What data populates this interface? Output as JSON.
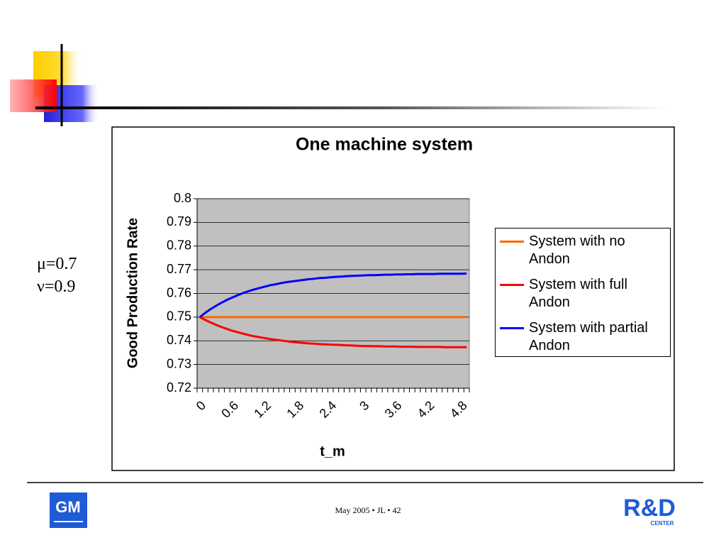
{
  "chart_data": {
    "type": "line",
    "title": "One machine system",
    "x_label": "t_m",
    "y_label": "Good Production Rate",
    "categories": [
      "0",
      null,
      null,
      null,
      null,
      null,
      "0.6",
      null,
      null,
      null,
      null,
      null,
      "1.2",
      null,
      null,
      null,
      null,
      null,
      "1.8",
      null,
      null,
      null,
      null,
      null,
      "2.4",
      null,
      null,
      null,
      null,
      null,
      "3",
      null,
      null,
      null,
      null,
      null,
      "3.6",
      null,
      null,
      null,
      null,
      null,
      "4.2",
      null,
      null,
      null,
      null,
      null,
      "4.8",
      null
    ],
    "series": [
      {
        "name": "System with no Andon",
        "color": "#ff6600",
        "values": [
          0.75,
          0.75,
          0.75,
          0.75,
          0.75,
          0.75,
          0.75,
          0.75,
          0.75,
          0.75,
          0.75,
          0.75,
          0.75,
          0.75,
          0.75,
          0.75,
          0.75,
          0.75,
          0.75,
          0.75,
          0.75,
          0.75,
          0.75,
          0.75,
          0.75,
          0.75,
          0.75,
          0.75,
          0.75,
          0.75,
          0.75,
          0.75,
          0.75,
          0.75,
          0.75,
          0.75,
          0.75,
          0.75,
          0.75,
          0.75,
          0.75,
          0.75,
          0.75,
          0.75,
          0.75,
          0.75,
          0.75,
          0.75,
          0.75,
          0.75
        ]
      },
      {
        "name": "System with full Andon",
        "color": "#ff0000",
        "values": [
          0.75,
          0.7488,
          0.7477,
          0.7467,
          0.7458,
          0.745,
          0.7442,
          0.7436,
          0.743,
          0.7424,
          0.7419,
          0.7415,
          0.7411,
          0.7407,
          0.7404,
          0.7401,
          0.7398,
          0.7395,
          0.7393,
          0.7391,
          0.7389,
          0.7388,
          0.7386,
          0.7385,
          0.7384,
          0.7383,
          0.7382,
          0.7381,
          0.738,
          0.7379,
          0.7378,
          0.7378,
          0.7377,
          0.7377,
          0.7376,
          0.7376,
          0.7376,
          0.7375,
          0.7375,
          0.7375,
          0.7374,
          0.7374,
          0.7374,
          0.7374,
          0.7374,
          0.7373,
          0.7373,
          0.7373,
          0.7373,
          0.7373
        ]
      },
      {
        "name": "System with partial Andon",
        "color": "#0000ff",
        "values": [
          0.75,
          0.7518,
          0.7534,
          0.7548,
          0.7561,
          0.7573,
          0.7583,
          0.7593,
          0.7602,
          0.761,
          0.7617,
          0.7623,
          0.7629,
          0.7635,
          0.7639,
          0.7644,
          0.7648,
          0.7651,
          0.7654,
          0.7657,
          0.766,
          0.7662,
          0.7665,
          0.7666,
          0.7668,
          0.767,
          0.7671,
          0.7673,
          0.7674,
          0.7675,
          0.7676,
          0.7677,
          0.7677,
          0.7678,
          0.7679,
          0.7679,
          0.768,
          0.768,
          0.7681,
          0.7681,
          0.7682,
          0.7682,
          0.7682,
          0.7682,
          0.7683,
          0.7683,
          0.7683,
          0.7683,
          0.7683,
          0.7684
        ]
      }
    ],
    "ylim": [
      0.72,
      0.8
    ],
    "yticks": [
      0.72,
      0.73,
      0.74,
      0.75,
      0.76,
      0.77,
      0.78,
      0.79,
      0.8
    ],
    "grid": true,
    "legend": "right",
    "plot_background": "#c0c0c0"
  },
  "slide": {
    "parameters": [
      "μ=0.7",
      "ν=0.9"
    ],
    "footer": "May 2005 • JL • 42",
    "left_logo": "GM",
    "right_logo": {
      "mark": "R&D",
      "caption": "CENTER"
    }
  }
}
